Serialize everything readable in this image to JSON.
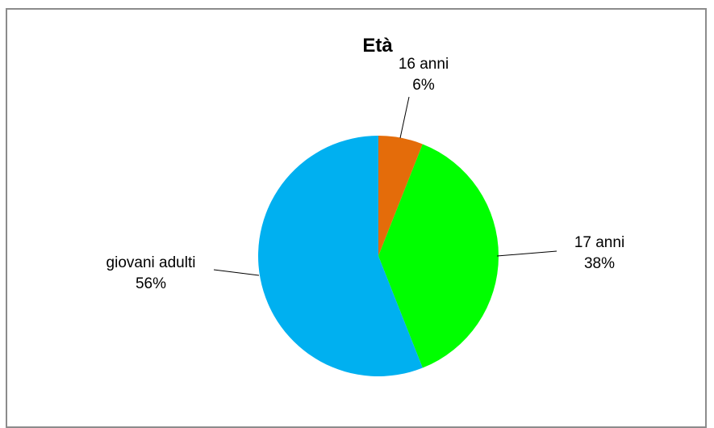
{
  "chart_data": {
    "type": "pie",
    "title": "Età",
    "slices": [
      {
        "label": "16 anni",
        "value": 6,
        "percent_text": "6%",
        "color": "#E46C0A"
      },
      {
        "label": "17 anni",
        "value": 38,
        "percent_text": "38%",
        "color": "#00FF00"
      },
      {
        "label": "giovani adulti",
        "value": 56,
        "percent_text": "56%",
        "color": "#00B0F0"
      }
    ],
    "legend": "none"
  }
}
